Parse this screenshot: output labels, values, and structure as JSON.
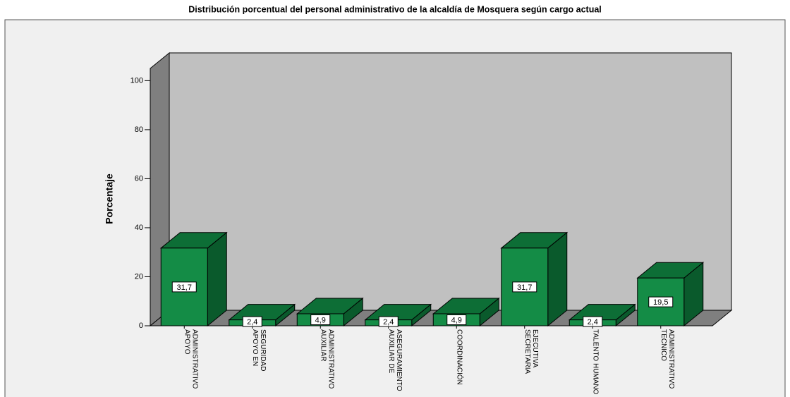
{
  "chart_data": {
    "type": "bar3d",
    "title": "Distribución porcentual del personal administrativo de la alcaldía de Mosquera según cargo actual",
    "y_label": "Porcentaje",
    "categories": [
      "APOYO\nADMINISTRATIVO",
      "APOYO EN\nSEGURIDAD",
      "AUXILIAR\nADMINISTRATIVO",
      "AUXILIAR DE\nASEGURAMIENTO",
      "COORDINACIÓN",
      "SECRETARIA\nEJECUTIVA",
      "TALENTO HUMANO",
      "TECNICO\nADMINISTRATIVO"
    ],
    "values": [
      31.7,
      2.4,
      4.9,
      2.4,
      4.9,
      31.7,
      2.4,
      19.5
    ],
    "value_labels": [
      "31,7",
      "2,4",
      "4,9",
      "2,4",
      "4,9",
      "31,7",
      "2,4",
      "19,5"
    ],
    "color": "#148c46",
    "ylim": [
      0,
      105
    ],
    "yticks": [
      0,
      20,
      40,
      60,
      80,
      100
    ]
  }
}
